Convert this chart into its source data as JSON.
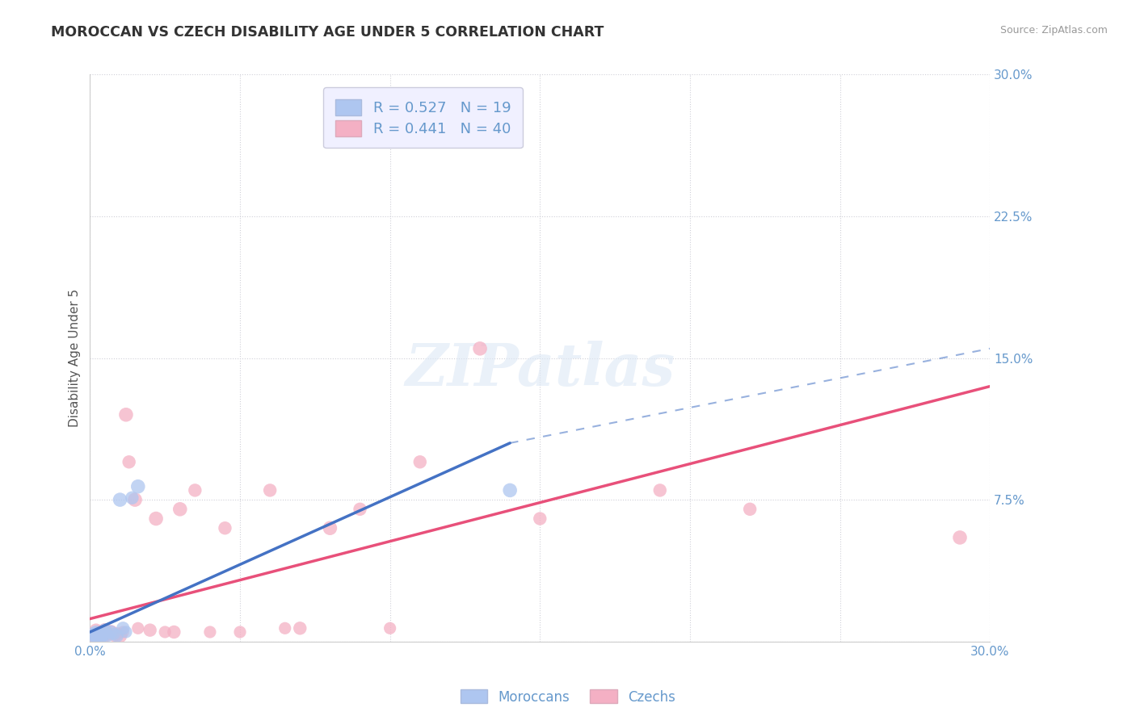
{
  "title": "MOROCCAN VS CZECH DISABILITY AGE UNDER 5 CORRELATION CHART",
  "source": "Source: ZipAtlas.com",
  "ylabel": "Disability Age Under 5",
  "xlabel": "",
  "xlim": [
    0.0,
    0.3
  ],
  "ylim": [
    0.0,
    0.3
  ],
  "xticks": [
    0.0,
    0.05,
    0.1,
    0.15,
    0.2,
    0.25,
    0.3
  ],
  "yticks": [
    0.0,
    0.075,
    0.15,
    0.225,
    0.3
  ],
  "background_color": "#ffffff",
  "grid_color": "#d0d0d8",
  "moroccan_color": "#aec6f0",
  "czech_color": "#f4b0c4",
  "moroccan_line_color": "#4472c4",
  "czech_line_color": "#e8507a",
  "moroccan_R": 0.527,
  "moroccan_N": 19,
  "czech_R": 0.441,
  "czech_N": 40,
  "moroccan_scatter_x": [
    0.001,
    0.001,
    0.002,
    0.002,
    0.003,
    0.003,
    0.004,
    0.005,
    0.005,
    0.006,
    0.007,
    0.008,
    0.009,
    0.01,
    0.011,
    0.012,
    0.014,
    0.016,
    0.14
  ],
  "moroccan_scatter_y": [
    0.002,
    0.004,
    0.003,
    0.005,
    0.002,
    0.004,
    0.003,
    0.004,
    0.006,
    0.003,
    0.005,
    0.004,
    0.003,
    0.075,
    0.007,
    0.005,
    0.076,
    0.082,
    0.08
  ],
  "moroccan_scatter_size": [
    80,
    70,
    90,
    70,
    100,
    80,
    70,
    80,
    70,
    60,
    70,
    60,
    70,
    80,
    70,
    60,
    70,
    80,
    80
  ],
  "czech_scatter_x": [
    0.001,
    0.001,
    0.002,
    0.002,
    0.003,
    0.003,
    0.004,
    0.005,
    0.005,
    0.006,
    0.007,
    0.008,
    0.009,
    0.01,
    0.011,
    0.012,
    0.013,
    0.015,
    0.016,
    0.02,
    0.022,
    0.025,
    0.028,
    0.03,
    0.035,
    0.04,
    0.045,
    0.05,
    0.06,
    0.065,
    0.07,
    0.08,
    0.09,
    0.1,
    0.11,
    0.13,
    0.15,
    0.19,
    0.22,
    0.29
  ],
  "czech_scatter_y": [
    0.002,
    0.004,
    0.003,
    0.006,
    0.003,
    0.005,
    0.004,
    0.003,
    0.006,
    0.004,
    0.005,
    0.003,
    0.004,
    0.003,
    0.005,
    0.12,
    0.095,
    0.075,
    0.007,
    0.006,
    0.065,
    0.005,
    0.005,
    0.07,
    0.08,
    0.005,
    0.06,
    0.005,
    0.08,
    0.007,
    0.007,
    0.06,
    0.07,
    0.007,
    0.095,
    0.155,
    0.065,
    0.08,
    0.07,
    0.055
  ],
  "czech_scatter_size": [
    70,
    60,
    80,
    70,
    90,
    70,
    80,
    70,
    80,
    70,
    80,
    60,
    70,
    80,
    60,
    80,
    70,
    80,
    60,
    70,
    80,
    60,
    70,
    80,
    70,
    60,
    70,
    60,
    70,
    60,
    70,
    80,
    70,
    60,
    70,
    80,
    70,
    70,
    70,
    80
  ],
  "legend_box_color": "#f0f0ff",
  "legend_border_color": "#ccccdd",
  "moroccan_line_x_start": 0.0,
  "moroccan_line_x_solid_end": 0.14,
  "moroccan_line_x_end": 0.3,
  "moroccan_line_y_at_0": 0.005,
  "moroccan_line_y_at_solid_end": 0.105,
  "moroccan_line_y_at_end": 0.155,
  "czech_line_x_start": 0.0,
  "czech_line_x_end": 0.3,
  "czech_line_y_at_0": 0.012,
  "czech_line_y_at_end": 0.135
}
